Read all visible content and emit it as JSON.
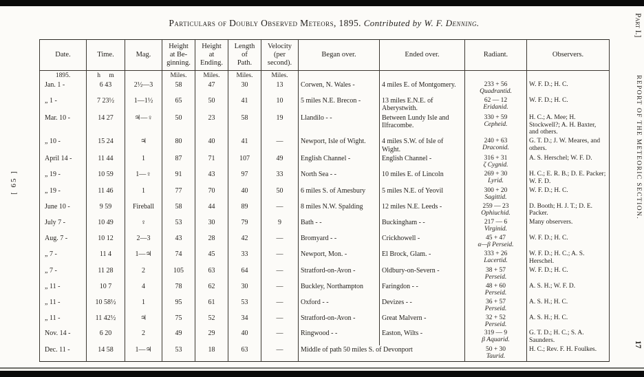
{
  "page": {
    "title": {
      "main": "Particulars of Doubly Observed Meteors, 1895.",
      "contributed": "Contributed by",
      "author": "W. F. Denning."
    },
    "margins": {
      "left": "[ 65 ]",
      "right_top": "Part I.]",
      "right_middle": "REPORT OF THE METEORIC SECTION.",
      "right_bottom": "17"
    }
  },
  "table": {
    "headers": [
      "Date.",
      "Time.",
      "Mag.",
      "Height\nat Be-\nginning.",
      "Height\nat\nEnding.",
      "Length\nof\nPath.",
      "Velocity\n(per\nsecond).",
      "Began over.",
      "Ended over.",
      "Radiant.",
      "Observers."
    ],
    "units": {
      "date": "1895.",
      "time": "h m",
      "miles": "Miles."
    },
    "rows": [
      {
        "date": "Jan. 1 -",
        "time": "6 43",
        "mag": "2½—3",
        "hb": "58",
        "he": "47",
        "len": "30",
        "vel": "13",
        "began": "Corwen, N. Wales -",
        "ended": "4 miles E. of Montgomery.",
        "radiant_coord": "233 + 56",
        "radiant_name": "Quadrantid.",
        "observers": "W. F. D.; H. C."
      },
      {
        "date": "„ 1 -",
        "time": "7 23½",
        "mag": "1—1½",
        "hb": "65",
        "he": "50",
        "len": "41",
        "vel": "10",
        "began": "5 miles N.E. Brecon -",
        "ended": "13 miles E.N.E. of Aberystwith.",
        "radiant_coord": "62 — 12",
        "radiant_name": "Eridanid.",
        "observers": "W. F. D.; H. C."
      },
      {
        "date": "Mar. 10 -",
        "time": "14 27",
        "mag": "♃—♀",
        "hb": "50",
        "he": "23",
        "len": "58",
        "vel": "19",
        "began": "Llandilo - -",
        "ended": "Between Lundy Isle and Ilfracombe.",
        "radiant_coord": "330 + 59",
        "radiant_name": "Cepheid.",
        "observers": "H. C.; A. Mee; H. Stockwell?; A. H. Baxter, and others."
      },
      {
        "date": "„ 10 -",
        "time": "15 24",
        "mag": "♃",
        "hb": "80",
        "he": "40",
        "len": "41",
        "vel": "—",
        "began": "Newport, Isle of Wight.",
        "ended": "4 miles S.W. of Isle of Wight.",
        "radiant_coord": "240 + 63",
        "radiant_name": "Draconid.",
        "observers": "G. T. D.; J. W. Meares, and others."
      },
      {
        "date": "April 14 -",
        "time": "11 44",
        "mag": "1",
        "hb": "87",
        "he": "71",
        "len": "107",
        "vel": "49",
        "began": "English Channel -",
        "ended": "English Channel -",
        "radiant_coord": "316 + 31",
        "radiant_name": "ζ Cygnid.",
        "observers": "A. S. Herschel; W. F. D."
      },
      {
        "date": "„ 19 -",
        "time": "10 59",
        "mag": "1—♀",
        "hb": "91",
        "he": "43",
        "len": "97",
        "vel": "33",
        "began": "North Sea - -",
        "ended": "10 miles E. of Lincoln",
        "radiant_coord": "269 + 30",
        "radiant_name": "Lyrid.",
        "observers": "H. C.; E. R. B.; D. E. Packer; W. F. D."
      },
      {
        "date": "„ 19 -",
        "time": "11 46",
        "mag": "1",
        "hb": "77",
        "he": "70",
        "len": "40",
        "vel": "50",
        "began": "6 miles S. of Amesbury",
        "ended": "5 miles N.E. of Yeovil",
        "radiant_coord": "300 + 20",
        "radiant_name": "Sagittid.",
        "observers": "W. F. D.; H. C."
      },
      {
        "date": "June 10 -",
        "time": "9 59",
        "mag": "Fireball",
        "hb": "58",
        "he": "44",
        "len": "89",
        "vel": "—",
        "began": "8 miles N.W. Spalding",
        "ended": "12 miles N.E. Leeds -",
        "radiant_coord": "259 — 23",
        "radiant_name": "Ophiuchid.",
        "observers": "D. Booth; H. J. T.; D. E. Packer."
      },
      {
        "date": "July 7 -",
        "time": "10 49",
        "mag": "♀",
        "hb": "53",
        "he": "30",
        "len": "79",
        "vel": "9",
        "began": "Bath - -",
        "ended": "Buckingham - -",
        "radiant_coord": "217 — 6",
        "radiant_name": "Virginid.",
        "observers": "Many observers."
      },
      {
        "date": "Aug. 7 -",
        "time": "10 12",
        "mag": "2—3",
        "hb": "43",
        "he": "28",
        "len": "42",
        "vel": "—",
        "began": "Bromyard - -",
        "ended": "Crickhowell -",
        "radiant_coord": "45 + 47",
        "radiant_name": "α—β Perseid.",
        "observers": "W. F. D.; H. C."
      },
      {
        "date": "„ 7 -",
        "time": "11 4",
        "mag": "1—♃",
        "hb": "74",
        "he": "45",
        "len": "33",
        "vel": "—",
        "began": "Newport, Mon. -",
        "ended": "El Brock, Glam. -",
        "radiant_coord": "333 + 26",
        "radiant_name": "Lacertid.",
        "observers": "W. F. D.; H. C.; A. S. Herschel."
      },
      {
        "date": "„ 7 -",
        "time": "11 28",
        "mag": "2",
        "hb": "105",
        "he": "63",
        "len": "64",
        "vel": "—",
        "began": "Stratford-on-Avon -",
        "ended": "Oldbury-on-Severn -",
        "radiant_coord": "38 + 57",
        "radiant_name": "Perseid.",
        "observers": "W. F. D.; H. C."
      },
      {
        "date": "„ 11 -",
        "time": "10 7",
        "mag": "4",
        "hb": "78",
        "he": "62",
        "len": "30",
        "vel": "—",
        "began": "Buckley, Northampton",
        "ended": "Faringdon - -",
        "radiant_coord": "48 + 60",
        "radiant_name": "Perseid.",
        "observers": "A. S. H.; W. F. D."
      },
      {
        "date": "„ 11 -",
        "time": "10 58½",
        "mag": "1",
        "hb": "95",
        "he": "61",
        "len": "53",
        "vel": "—",
        "began": "Oxford - -",
        "ended": "Devizes - -",
        "radiant_coord": "36 + 57",
        "radiant_name": "Perseid.",
        "observers": "A. S. H.; H. C."
      },
      {
        "date": "„ 11 -",
        "time": "11 42½",
        "mag": "♃",
        "hb": "75",
        "he": "52",
        "len": "34",
        "vel": "—",
        "began": "Stratford-on-Avon -",
        "ended": "Great Malvern -",
        "radiant_coord": "32 + 52",
        "radiant_name": "Perseid.",
        "observers": "A. S. H.; H. C."
      },
      {
        "date": "Nov. 14 -",
        "time": "6 20",
        "mag": "2",
        "hb": "49",
        "he": "29",
        "len": "40",
        "vel": "—",
        "began": "Ringwood - -",
        "ended": "Easton, Wilts -",
        "radiant_coord": "319 — 9",
        "radiant_name": "β Aquarid.",
        "observers": "G. T. D.; H. C.; S. A. Saunders."
      },
      {
        "date": "Dec. 11 -",
        "time": "14 58",
        "mag": "1—♃",
        "hb": "53",
        "he": "18",
        "len": "63",
        "vel": "—",
        "began": "Middle of path 50 miles S. of Devonport",
        "ended": null,
        "radiant_coord": "50 + 30",
        "radiant_name": "Taurid.",
        "observers": "H. C.; Rev. F. H. Foulkes."
      }
    ]
  }
}
